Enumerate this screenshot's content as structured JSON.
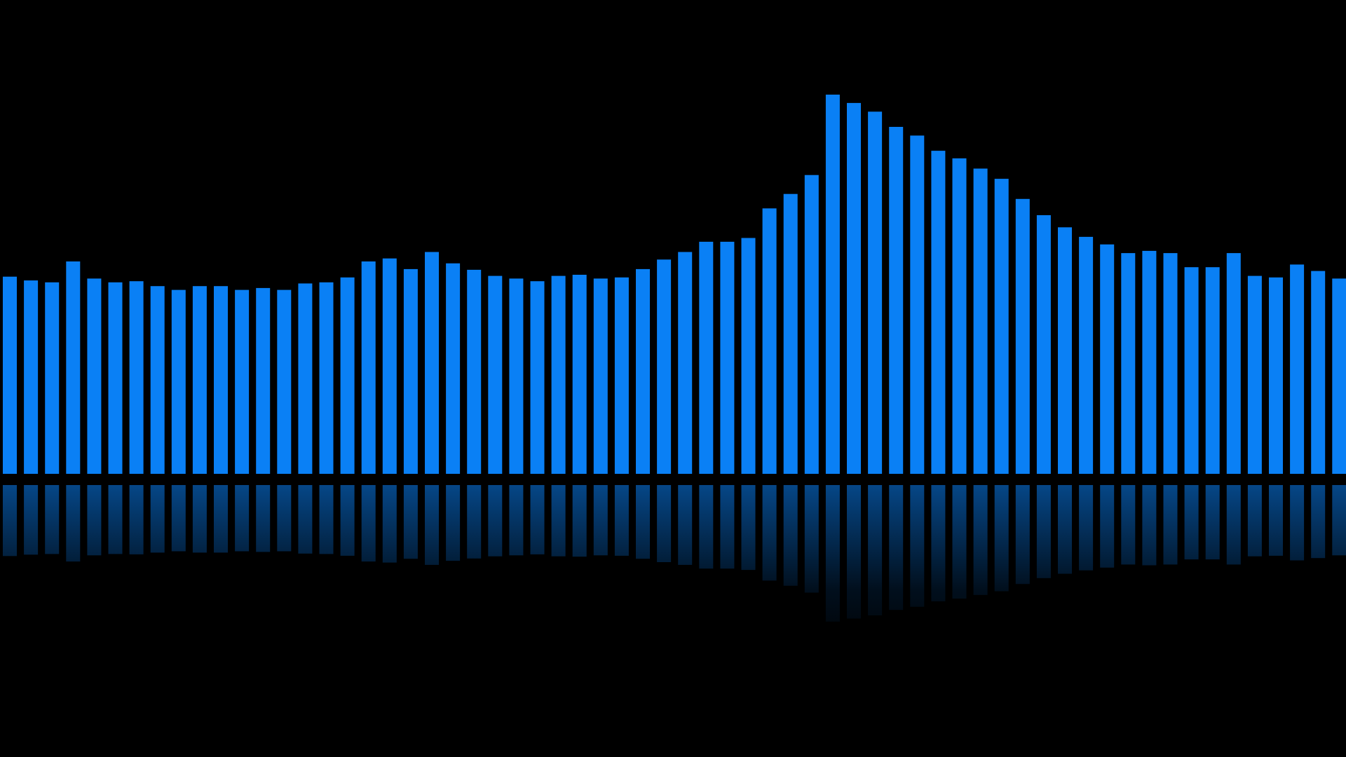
{
  "visualizer": {
    "type": "audio-spectrum-bars",
    "bar_color": "#0a80f5",
    "background_color": "#000000",
    "reflection": true,
    "max_level": 1.0,
    "levels": [
      0.52,
      0.51,
      0.505,
      0.56,
      0.515,
      0.505,
      0.508,
      0.495,
      0.485,
      0.495,
      0.495,
      0.485,
      0.49,
      0.485,
      0.502,
      0.505,
      0.518,
      0.56,
      0.568,
      0.54,
      0.585,
      0.555,
      0.538,
      0.522,
      0.515,
      0.508,
      0.522,
      0.525,
      0.515,
      0.518,
      0.54,
      0.565,
      0.585,
      0.612,
      0.612,
      0.622,
      0.7,
      0.738,
      0.788,
      1.0,
      0.978,
      0.955,
      0.915,
      0.892,
      0.852,
      0.832,
      0.805,
      0.778,
      0.725,
      0.682,
      0.65,
      0.625,
      0.605,
      0.582,
      0.588,
      0.582,
      0.545,
      0.545,
      0.582,
      0.522,
      0.518,
      0.552,
      0.535,
      0.515
    ]
  }
}
